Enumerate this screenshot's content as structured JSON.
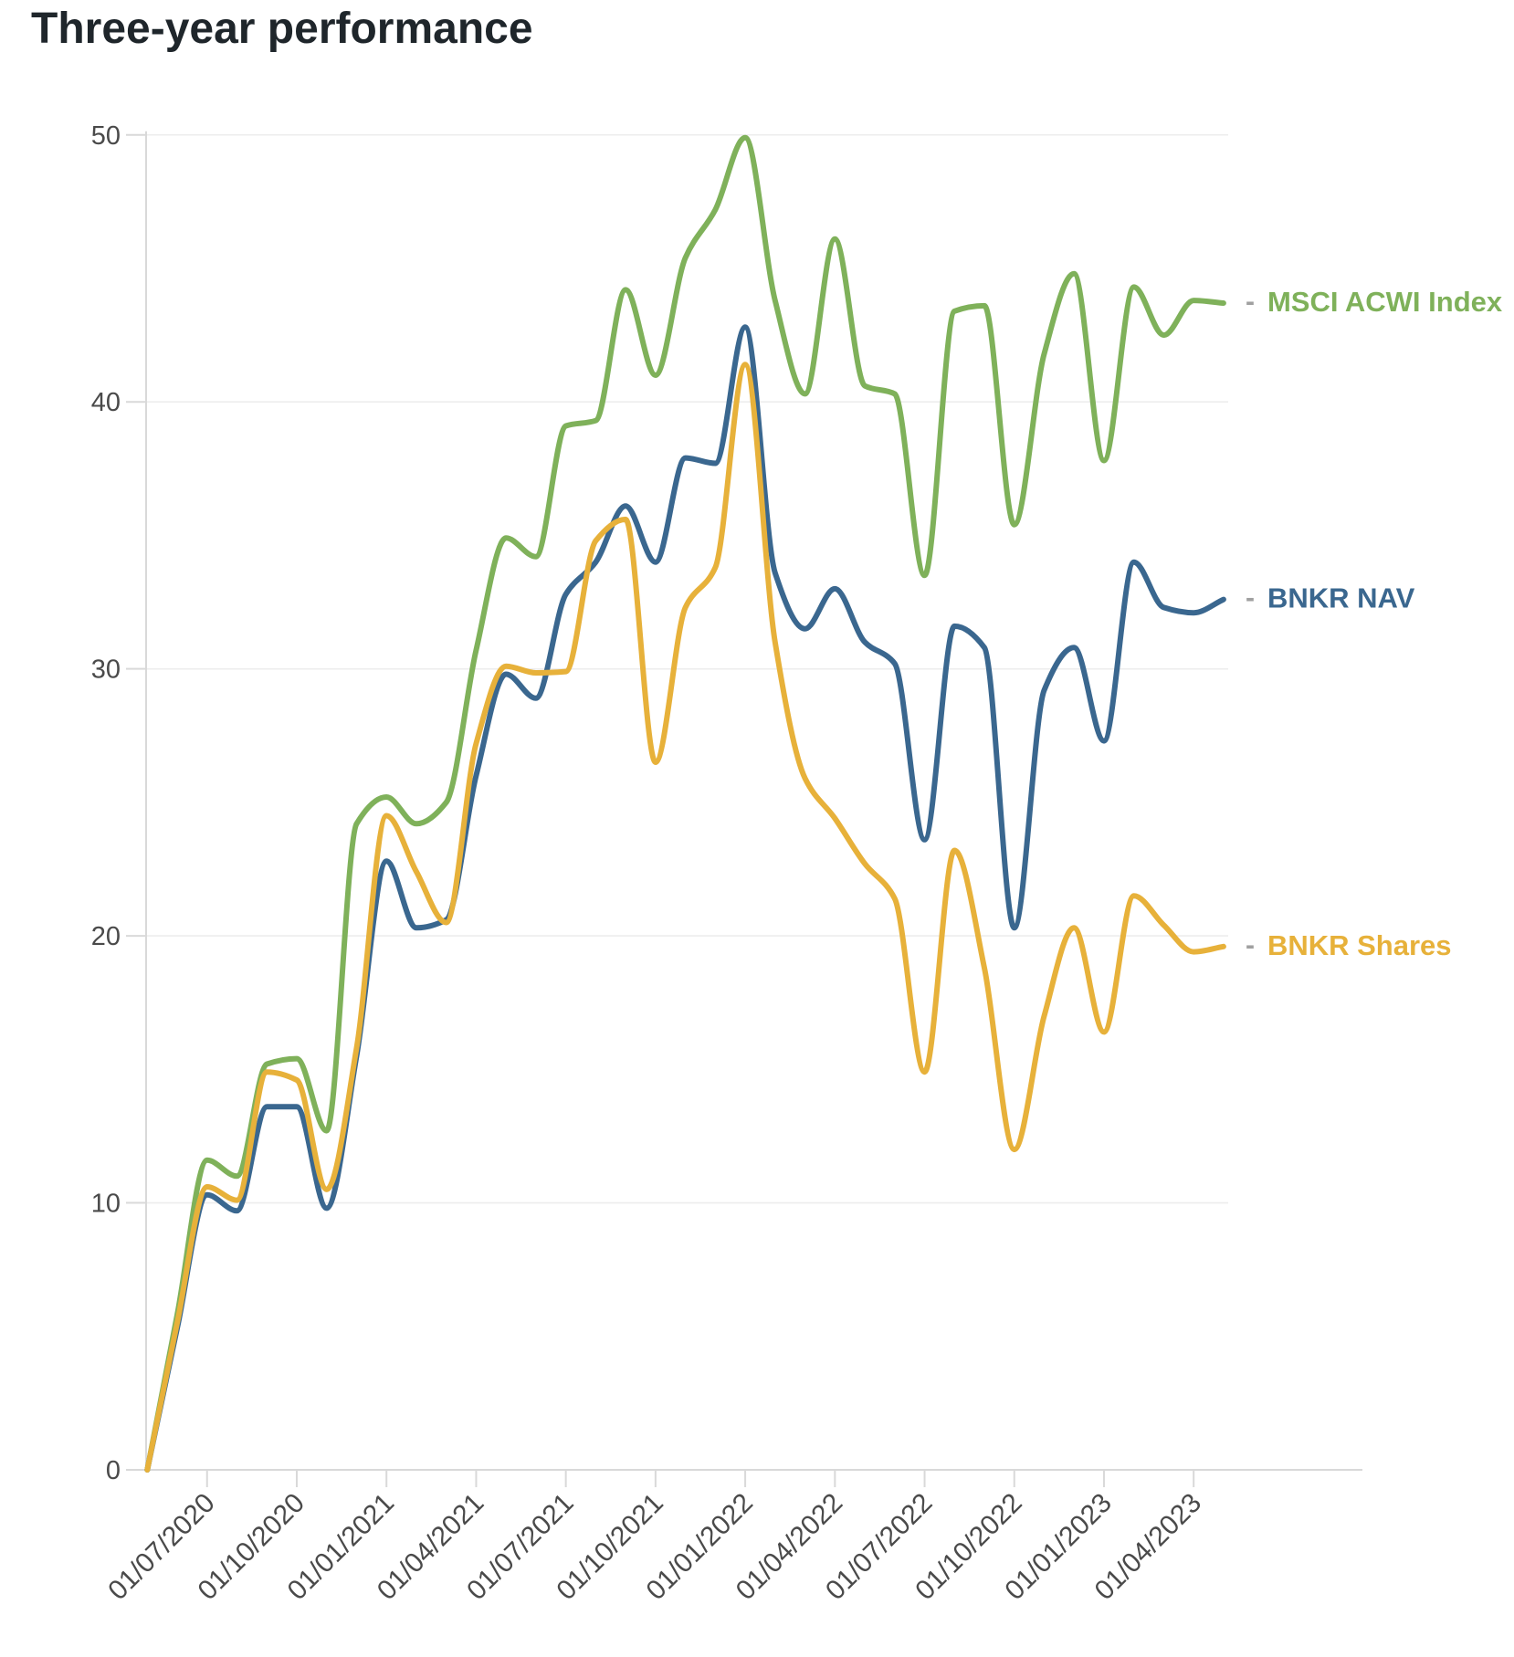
{
  "page": {
    "title": "Three-year performance"
  },
  "icons": {
    "legend_dash": "-"
  },
  "colors": {
    "background": "#ffffff",
    "grid": "#ededed",
    "axis": "#d9d9d9",
    "tick_text": "#4a4a4a",
    "title_text": "#1f262b",
    "legend_dash": "#a0a0a0"
  },
  "chart_data": {
    "type": "line",
    "title": "Three-year performance",
    "xlabel": "",
    "ylabel": "",
    "ylim": [
      0,
      50
    ],
    "yticks": [
      "0",
      "10",
      "20",
      "30",
      "40",
      "50"
    ],
    "grid": "horizontal gridlines only",
    "legend_position": "labels at right end of each line",
    "x_tick_labels": [
      "01/07/2020",
      "01/10/2020",
      "01/01/2021",
      "01/04/2021",
      "01/07/2021",
      "01/10/2021",
      "01/01/2022",
      "01/04/2022",
      "01/07/2022",
      "01/10/2022",
      "01/01/2023",
      "01/04/2023"
    ],
    "months": [
      "01/05/2020",
      "01/06/2020",
      "01/07/2020",
      "01/08/2020",
      "01/09/2020",
      "01/10/2020",
      "01/11/2020",
      "01/12/2020",
      "01/01/2021",
      "01/02/2021",
      "01/03/2021",
      "01/04/2021",
      "01/05/2021",
      "01/06/2021",
      "01/07/2021",
      "01/08/2021",
      "01/09/2021",
      "01/10/2021",
      "01/11/2021",
      "01/12/2021",
      "01/01/2022",
      "01/02/2022",
      "01/03/2022",
      "01/04/2022",
      "01/05/2022",
      "01/06/2022",
      "01/07/2022",
      "01/08/2022",
      "01/09/2022",
      "01/10/2022",
      "01/11/2022",
      "01/12/2022",
      "01/01/2023",
      "01/02/2023",
      "01/03/2023",
      "01/04/2023",
      "25/04/2023"
    ],
    "series": [
      {
        "name": "MSCI ACWI Index",
        "color": "#7fb15a",
        "values": [
          0,
          5.8,
          11.6,
          11.0,
          15.2,
          15.4,
          12.7,
          24.2,
          25.2,
          24.2,
          25.0,
          30.7,
          34.9,
          34.2,
          39.1,
          39.3,
          44.2,
          41.0,
          45.4,
          47.2,
          49.9,
          43.8,
          40.3,
          46.1,
          40.6,
          40.3,
          33.5,
          43.4,
          43.6,
          35.4,
          41.8,
          44.8,
          37.8,
          44.3,
          42.5,
          43.8,
          43.7
        ]
      },
      {
        "name": "BNKR NAV",
        "color": "#3a678f",
        "values": [
          0,
          5.3,
          10.3,
          9.7,
          13.6,
          13.6,
          9.8,
          15.5,
          22.8,
          20.3,
          20.6,
          26.0,
          29.8,
          28.9,
          32.8,
          34.0,
          36.1,
          34.0,
          37.9,
          37.7,
          42.8,
          33.6,
          31.5,
          33.0,
          31.0,
          30.2,
          23.6,
          31.6,
          30.8,
          20.3,
          29.2,
          30.8,
          27.3,
          34.0,
          32.3,
          32.1,
          32.6
        ]
      },
      {
        "name": "BNKR Shares",
        "color": "#e7b13a",
        "values": [
          0,
          5.5,
          10.6,
          10.1,
          14.9,
          14.6,
          10.5,
          15.8,
          24.5,
          22.4,
          20.5,
          27.2,
          30.1,
          29.85,
          29.9,
          34.8,
          35.6,
          26.5,
          32.3,
          33.8,
          41.4,
          31.0,
          25.9,
          24.4,
          22.7,
          21.4,
          14.9,
          23.2,
          18.8,
          12.0,
          17.0,
          20.3,
          16.4,
          21.5,
          20.4,
          19.4,
          19.6
        ]
      }
    ]
  }
}
